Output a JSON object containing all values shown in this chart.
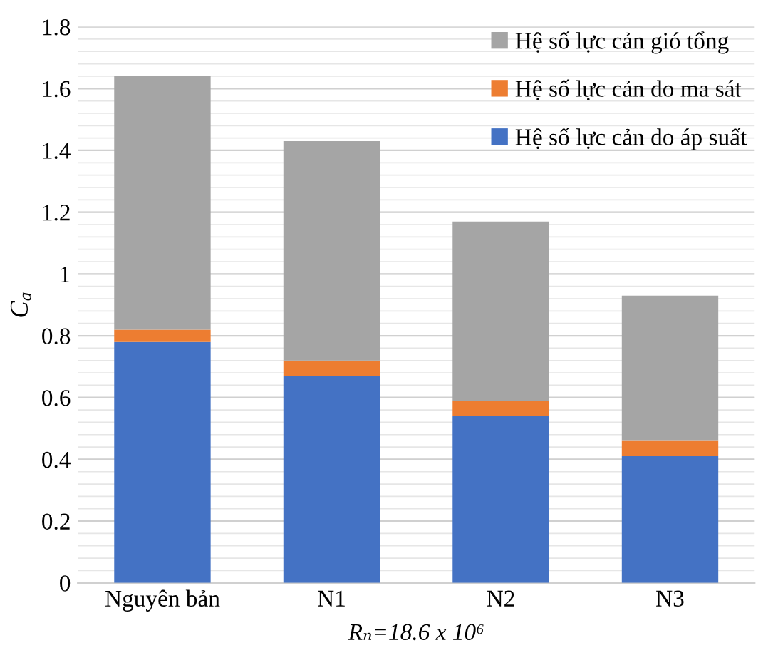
{
  "chart_data": {
    "type": "bar",
    "stacked": true,
    "categories": [
      "Nguyên bản",
      "N1",
      "N2",
      "N3"
    ],
    "series": [
      {
        "name": "Hệ số lực cản do áp suất",
        "color": "#4472c4",
        "values": [
          0.78,
          0.67,
          0.54,
          0.41
        ]
      },
      {
        "name": "Hệ số lực cản do ma sát",
        "color": "#ed7d31",
        "values": [
          0.04,
          0.05,
          0.05,
          0.05
        ]
      },
      {
        "name": "Hệ số lực cản gió tổng",
        "color": "#a5a5a5",
        "values": [
          0.82,
          0.71,
          0.58,
          0.47
        ]
      }
    ],
    "xlabel": "Rₙ=18.6 x 10⁶",
    "ylabel": "C$_{a}$",
    "ylim": [
      0,
      1.8
    ],
    "yticks": [
      0,
      0.2,
      0.4,
      0.6,
      0.8,
      1,
      1.2,
      1.4,
      1.6,
      1.8
    ],
    "grid": "y",
    "legend": "top right"
  }
}
